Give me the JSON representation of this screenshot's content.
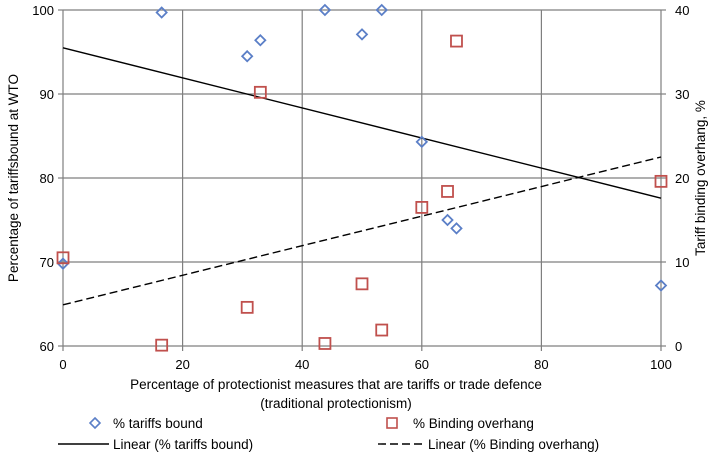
{
  "chart_data": {
    "type": "scatter",
    "title": "",
    "xlabel_line1": "Percentage of protectionist measures that are tariffs or trade defence",
    "xlabel_line2": "(traditional protectionism)",
    "ylabel_left": "Percentage of tariffsbound at WTO",
    "ylabel_right": "Tariff binding overhang, %",
    "xlim": [
      0,
      100
    ],
    "ylim_left": [
      60,
      100
    ],
    "ylim_right": [
      0,
      40
    ],
    "x_ticks": [
      0,
      20,
      40,
      60,
      80,
      100
    ],
    "y_left_ticks": [
      60,
      70,
      80,
      90,
      100
    ],
    "y_right_ticks": [
      0,
      10,
      20,
      30,
      40
    ],
    "grid": true,
    "legend_position": "bottom",
    "colors": {
      "tariffs_bound": "#5b7fc7",
      "binding_overhang": "#c0504d",
      "trend_lines": "#000000",
      "grid": "#7f7f7f"
    },
    "series": [
      {
        "name": "% tariffs bound",
        "axis": "left",
        "marker": "diamond",
        "points": [
          {
            "x": 0,
            "y": 69.8
          },
          {
            "x": 16.5,
            "y": 99.7
          },
          {
            "x": 30.8,
            "y": 94.5
          },
          {
            "x": 33,
            "y": 96.4
          },
          {
            "x": 43.8,
            "y": 100
          },
          {
            "x": 50,
            "y": 97.1
          },
          {
            "x": 53.3,
            "y": 100
          },
          {
            "x": 60,
            "y": 84.3
          },
          {
            "x": 64.3,
            "y": 75
          },
          {
            "x": 65.8,
            "y": 74
          },
          {
            "x": 100,
            "y": 67.2
          }
        ]
      },
      {
        "name": "% Binding overhang",
        "axis": "right",
        "marker": "square",
        "points": [
          {
            "x": 0,
            "y": 10.5
          },
          {
            "x": 16.5,
            "y": 0.1
          },
          {
            "x": 30.8,
            "y": 4.6
          },
          {
            "x": 33,
            "y": 30.2
          },
          {
            "x": 43.8,
            "y": 0.3
          },
          {
            "x": 50,
            "y": 7.4
          },
          {
            "x": 53.3,
            "y": 1.9
          },
          {
            "x": 60,
            "y": 16.5
          },
          {
            "x": 64.3,
            "y": 18.4
          },
          {
            "x": 65.8,
            "y": 36.3
          },
          {
            "x": 100,
            "y": 19.6
          }
        ]
      },
      {
        "name": "Linear (% tariffs bound)",
        "axis": "left",
        "style": "solid",
        "trend": {
          "x0": 0,
          "y0": 95.5,
          "x1": 100,
          "y1": 77.6
        }
      },
      {
        "name": "Linear (% Binding overhang)",
        "axis": "right",
        "style": "dashed",
        "trend": {
          "x0": 0,
          "y0": 4.9,
          "x1": 100,
          "y1": 22.5
        }
      }
    ],
    "legend": [
      {
        "label": "% tariffs bound",
        "symbol": "diamond"
      },
      {
        "label": "% Binding overhang",
        "symbol": "square"
      },
      {
        "label": "Linear (% tariffs bound)",
        "symbol": "solid-line"
      },
      {
        "label": "Linear (% Binding overhang)",
        "symbol": "dashed-line"
      }
    ]
  }
}
